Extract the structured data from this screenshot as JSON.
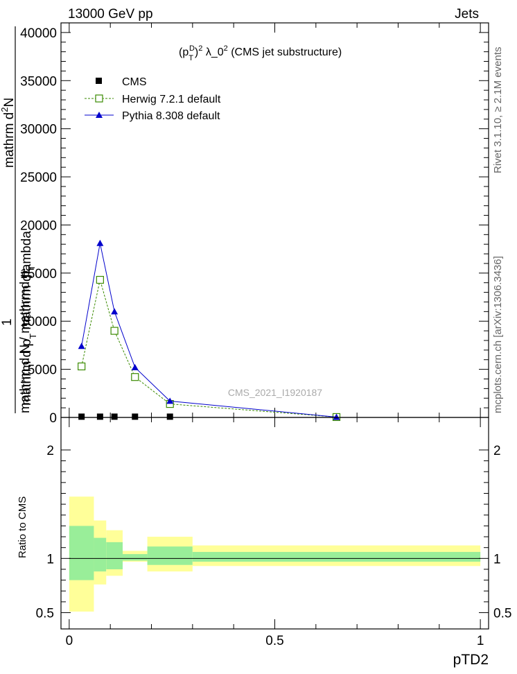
{
  "header": {
    "left": "13000 GeV pp",
    "right": "Jets"
  },
  "side_labels": {
    "rivet": "Rivet 3.1.10, ≥ 2.1M events",
    "mcplots": "mcplots.cern.ch [arXiv:1306.3436]"
  },
  "watermark": "CMS_2021_I1920187",
  "chart_data": [
    {
      "type": "line",
      "title": "(p_T^D)^2 λ_0^2 (CMS jet substructure)",
      "title_parts": {
        "p": "(p",
        "sub": "T",
        "sup": "D",
        "mid": ")",
        "sup2": "2",
        "rest": " λ_0",
        "sup3": "2",
        "end": " (CMS jet substructure)"
      },
      "ylabel_lines": [
        "mathrm d²N",
        "mathrm d p_T mathrm dlambda",
        "1",
        "mathrm d N / mathrmd p_T"
      ],
      "ylabel_top_pieces": [
        "mathrm d",
        "2",
        "N",
        "mathrm d p",
        "T",
        " mathrm dlambda"
      ],
      "ylabel_bottom_pieces": [
        "mathrm d N / mathrmd p",
        "T"
      ],
      "ylabel_one": "1",
      "ylim": [
        0,
        41000
      ],
      "yticks": [
        0,
        5000,
        10000,
        15000,
        20000,
        25000,
        30000,
        35000,
        40000
      ],
      "ytick_labels": [
        "0",
        "5000",
        "10000",
        "15000",
        "20000",
        "25000",
        "30000",
        "35000",
        "40000"
      ],
      "xlim": [
        -0.02,
        1.02
      ],
      "legend_placement": "top-left",
      "series": [
        {
          "name": "CMS",
          "marker": "square-filled",
          "color": "#000000",
          "x": [
            0.03,
            0.075,
            0.11,
            0.16,
            0.245,
            0.65
          ],
          "y": [
            80,
            80,
            80,
            80,
            80,
            40
          ]
        },
        {
          "name": "Herwig 7.2.1 default",
          "marker": "square-open",
          "color": "#3a8a00",
          "dashed": true,
          "x": [
            0.03,
            0.075,
            0.11,
            0.16,
            0.245,
            0.65
          ],
          "y": [
            5300,
            14300,
            9000,
            4200,
            1400,
            40
          ]
        },
        {
          "name": "Pythia 8.308 default",
          "marker": "triangle-filled",
          "color": "#0000cc",
          "dashed": false,
          "x": [
            0.03,
            0.075,
            0.11,
            0.16,
            0.245,
            0.65
          ],
          "y": [
            7400,
            18100,
            11000,
            5200,
            1700,
            40
          ]
        }
      ]
    },
    {
      "type": "area",
      "ylabel": "Ratio to CMS",
      "xlabel": "pTD2",
      "ylim": [
        0.35,
        2.3
      ],
      "yticks": [
        0.5,
        1,
        2
      ],
      "ytick_labels": [
        "0.5",
        "1",
        "2"
      ],
      "xlim": [
        -0.02,
        1.02
      ],
      "xticks": [
        0,
        0.5,
        1
      ],
      "xtick_labels": [
        "0",
        "0.5",
        "1"
      ],
      "bins": [
        {
          "x0": 0.0,
          "x1": 0.06,
          "green": [
            0.8,
            1.3
          ],
          "yellow": [
            0.51,
            1.57
          ]
        },
        {
          "x0": 0.06,
          "x1": 0.09,
          "green": [
            0.88,
            1.19
          ],
          "yellow": [
            0.76,
            1.35
          ]
        },
        {
          "x0": 0.09,
          "x1": 0.13,
          "green": [
            0.9,
            1.15
          ],
          "yellow": [
            0.84,
            1.26
          ]
        },
        {
          "x0": 0.13,
          "x1": 0.19,
          "green": [
            0.98,
            1.04
          ],
          "yellow": [
            0.97,
            1.07
          ]
        },
        {
          "x0": 0.19,
          "x1": 0.3,
          "green": [
            0.94,
            1.11
          ],
          "yellow": [
            0.88,
            1.2
          ]
        },
        {
          "x0": 0.3,
          "x1": 1.0,
          "green": [
            0.97,
            1.06
          ],
          "yellow": [
            0.93,
            1.12
          ]
        }
      ]
    }
  ]
}
